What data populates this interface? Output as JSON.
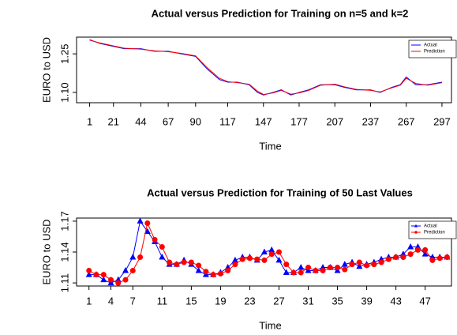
{
  "chart_data": [
    {
      "type": "line",
      "title": "Actual versus Prediction for Training on n=5 and k=2",
      "x_label": "Time",
      "y_label": "EURO to USD",
      "x": [
        1,
        10,
        20,
        30,
        44,
        55,
        67,
        78,
        90,
        100,
        110,
        117,
        125,
        135,
        142,
        147,
        155,
        162,
        170,
        177,
        185,
        195,
        207,
        215,
        225,
        237,
        245,
        255,
        262,
        267,
        275,
        285,
        297
      ],
      "series": [
        {
          "name": "Actual",
          "color": "#0000ff",
          "values": [
            1.305,
            1.29,
            1.28,
            1.27,
            1.27,
            1.26,
            1.26,
            1.25,
            1.24,
            1.19,
            1.15,
            1.14,
            1.14,
            1.13,
            1.1,
            1.09,
            1.1,
            1.11,
            1.09,
            1.1,
            1.11,
            1.13,
            1.13,
            1.12,
            1.11,
            1.11,
            1.1,
            1.12,
            1.13,
            1.16,
            1.13,
            1.13,
            1.14
          ]
        },
        {
          "name": "Prediction",
          "color": "#ff0000",
          "values": [
            1.303,
            1.292,
            1.282,
            1.272,
            1.268,
            1.262,
            1.258,
            1.252,
            1.242,
            1.195,
            1.155,
            1.142,
            1.138,
            1.132,
            1.105,
            1.092,
            1.098,
            1.108,
            1.093,
            1.098,
            1.108,
            1.128,
            1.132,
            1.122,
            1.112,
            1.108,
            1.102,
            1.118,
            1.128,
            1.155,
            1.135,
            1.128,
            1.138
          ]
        }
      ],
      "xlim": [
        -10,
        305
      ],
      "xticks": [
        1,
        21,
        44,
        67,
        90,
        117,
        147,
        177,
        207,
        237,
        267,
        297
      ],
      "ylim": [
        1.06,
        1.315
      ],
      "yticks": [
        {
          "value": 1.1,
          "label": "1.10"
        },
        1.25
      ],
      "legend": "topright"
    },
    {
      "type": "line",
      "title": "Actual versus Prediction for Training of 50 Last Values",
      "x_label": "Time",
      "y_label": "EURO to USD",
      "x": [
        1,
        2,
        3,
        4,
        5,
        6,
        7,
        8,
        9,
        10,
        11,
        12,
        13,
        14,
        15,
        16,
        17,
        18,
        19,
        20,
        21,
        22,
        23,
        24,
        25,
        26,
        27,
        28,
        29,
        30,
        31,
        32,
        33,
        34,
        35,
        36,
        37,
        38,
        39,
        40,
        41,
        42,
        43,
        44,
        45,
        46,
        47,
        48,
        49,
        50
      ],
      "series": [
        {
          "name": "Actual",
          "color": "#0000ff",
          "marker": "triangle",
          "values": [
            1.118,
            1.118,
            1.113,
            1.11,
            1.113,
            1.122,
            1.135,
            1.17,
            1.16,
            1.15,
            1.135,
            1.128,
            1.128,
            1.132,
            1.128,
            1.122,
            1.118,
            1.118,
            1.12,
            1.125,
            1.132,
            1.135,
            1.135,
            1.132,
            1.14,
            1.142,
            1.132,
            1.12,
            1.12,
            1.125,
            1.122,
            1.122,
            1.125,
            1.125,
            1.122,
            1.128,
            1.13,
            1.126,
            1.128,
            1.13,
            1.133,
            1.135,
            1.135,
            1.138,
            1.145,
            1.145,
            1.138,
            1.135,
            1.135,
            1.135
          ]
        },
        {
          "name": "Prediction",
          "color": "#ff0000",
          "marker": "circle",
          "values": [
            1.122,
            1.118,
            1.118,
            1.113,
            1.11,
            1.113,
            1.122,
            1.135,
            1.168,
            1.152,
            1.145,
            1.13,
            1.128,
            1.13,
            1.13,
            1.127,
            1.121,
            1.118,
            1.119,
            1.122,
            1.128,
            1.133,
            1.134,
            1.133,
            1.132,
            1.138,
            1.14,
            1.128,
            1.12,
            1.12,
            1.125,
            1.122,
            1.122,
            1.125,
            1.125,
            1.123,
            1.128,
            1.13,
            1.127,
            1.128,
            1.13,
            1.133,
            1.135,
            1.135,
            1.138,
            1.142,
            1.142,
            1.132,
            1.134,
            1.135
          ]
        }
      ],
      "xlim": [
        -0.7,
        50.6
      ],
      "xticks": [
        1,
        4,
        7,
        11,
        15,
        19,
        23,
        27,
        31,
        35,
        39,
        43,
        47
      ],
      "ylim": [
        1.107,
        1.173
      ],
      "yticks": [
        1.11,
        1.14,
        1.17
      ],
      "legend": "topright"
    }
  ]
}
